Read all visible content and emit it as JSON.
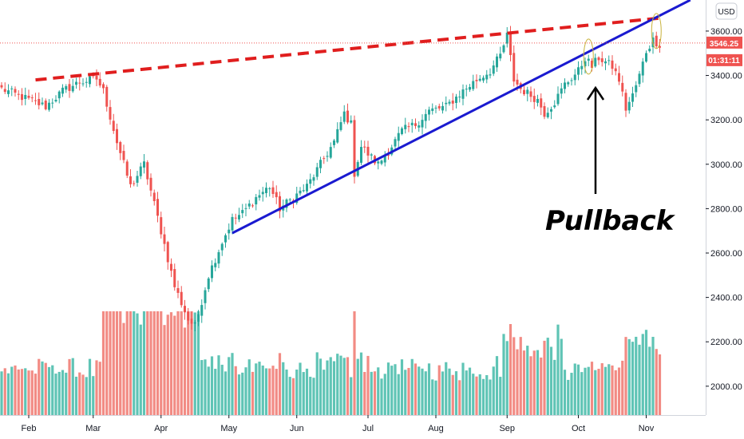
{
  "chart_data": {
    "type": "candlestick",
    "title": "",
    "currency": "USD",
    "y_ticks": [
      "3600.00",
      "3400.00",
      "3200.00",
      "3000.00",
      "2800.00",
      "2600.00",
      "2400.00",
      "2200.00",
      "2000.00"
    ],
    "ylim": [
      1870,
      3740
    ],
    "x_labels": [
      "Feb",
      "Mar",
      "Apr",
      "May",
      "Jun",
      "Jul",
      "Aug",
      "Sep",
      "Oct",
      "Nov"
    ],
    "last_price": "3546.25",
    "countdown": "01:31:11",
    "last_price_value": 3546.25,
    "annotation": "Pullback",
    "colors": {
      "up": "#26a69a",
      "down": "#ef5350",
      "volume_up": "#5fc4b5",
      "volume_down": "#f28b84",
      "resistance": "#e01e1e",
      "trendline": "#1a1ad0",
      "badge": "#ef5350"
    },
    "anchors": [
      [
        0,
        3340
      ],
      [
        13,
        3260
      ],
      [
        18,
        3330
      ],
      [
        23,
        3370
      ],
      [
        28,
        3385
      ],
      [
        30,
        3330
      ],
      [
        34,
        3100
      ],
      [
        38,
        2900
      ],
      [
        42,
        3000
      ],
      [
        47,
        2700
      ],
      [
        51,
        2450
      ],
      [
        55,
        2300
      ],
      [
        57,
        2270
      ],
      [
        61,
        2500
      ],
      [
        65,
        2650
      ],
      [
        68,
        2750
      ],
      [
        71,
        2780
      ],
      [
        75,
        2850
      ],
      [
        79,
        2900
      ],
      [
        82,
        2800
      ],
      [
        86,
        2850
      ],
      [
        90,
        2900
      ],
      [
        94,
        3000
      ],
      [
        98,
        3100
      ],
      [
        101,
        3230
      ],
      [
        103,
        3180
      ],
      [
        104,
        2960
      ],
      [
        106,
        3080
      ],
      [
        109,
        3030
      ],
      [
        111,
        3000
      ],
      [
        114,
        3060
      ],
      [
        118,
        3150
      ],
      [
        122,
        3180
      ],
      [
        126,
        3240
      ],
      [
        131,
        3260
      ],
      [
        136,
        3330
      ],
      [
        140,
        3380
      ],
      [
        144,
        3420
      ],
      [
        147,
        3490
      ],
      [
        149,
        3580
      ],
      [
        151,
        3380
      ],
      [
        153,
        3340
      ],
      [
        155,
        3320
      ],
      [
        158,
        3290
      ],
      [
        160,
        3230
      ],
      [
        163,
        3280
      ],
      [
        166,
        3360
      ],
      [
        170,
        3420
      ],
      [
        172,
        3480
      ],
      [
        174,
        3440
      ],
      [
        176,
        3480
      ],
      [
        180,
        3440
      ],
      [
        182,
        3380
      ],
      [
        184,
        3250
      ],
      [
        186,
        3310
      ],
      [
        188,
        3400
      ],
      [
        190,
        3510
      ],
      [
        192,
        3560
      ],
      [
        194,
        3540
      ]
    ],
    "volume_axis_max": 2700,
    "resistance_line": {
      "x": [
        10,
        195
      ],
      "y": [
        3380,
        3660
      ]
    },
    "trend_line": {
      "x": [
        68,
        203
      ],
      "y": [
        2690,
        3740
      ]
    },
    "highlight_circles": [
      {
        "x": 173,
        "y": 3485
      },
      {
        "x": 193,
        "y": 3600
      }
    ]
  }
}
